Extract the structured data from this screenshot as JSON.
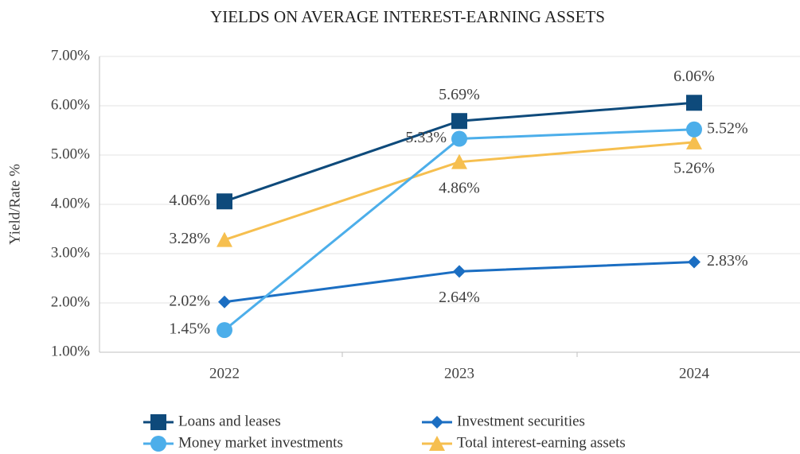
{
  "chart_data": {
    "type": "line",
    "title": "YIELDS ON AVERAGE INTEREST-EARNING ASSETS",
    "y_label": "Yield/Rate %",
    "categories": [
      "2022",
      "2023",
      "2024"
    ],
    "series": [
      {
        "name": "Loans and leases",
        "color": "#0e4a7b",
        "marker": "square",
        "values": [
          4.06,
          5.69,
          6.06
        ],
        "value_labels": [
          "4.06%",
          "5.69%",
          "6.06%"
        ]
      },
      {
        "name": "Investment securities",
        "color": "#1b6ec2",
        "marker": "diamond",
        "values": [
          2.02,
          2.64,
          2.83
        ],
        "value_labels": [
          "2.02%",
          "2.64%",
          "2.83%"
        ]
      },
      {
        "name": "Money market investments",
        "color": "#4caeea",
        "marker": "circle",
        "values": [
          1.45,
          5.33,
          5.52
        ],
        "value_labels": [
          "1.45%",
          "5.33%",
          "5.52%"
        ]
      },
      {
        "name": "Total interest-earning assets",
        "color": "#f6bf4f",
        "marker": "triangle",
        "values": [
          3.28,
          4.86,
          5.26
        ],
        "value_labels": [
          "3.28%",
          "4.86%",
          "5.26%"
        ]
      }
    ],
    "ylim": [
      1,
      7
    ],
    "yticks": [
      {
        "value": 1,
        "label": "1.00%"
      },
      {
        "value": 2,
        "label": "2.00%"
      },
      {
        "value": 3,
        "label": "3.00%"
      },
      {
        "value": 4,
        "label": "4.00%"
      },
      {
        "value": 5,
        "label": "5.00%"
      },
      {
        "value": 6,
        "label": "6.00%"
      },
      {
        "value": 7,
        "label": "7.00%"
      }
    ],
    "grid": true,
    "legend": "bottom"
  }
}
